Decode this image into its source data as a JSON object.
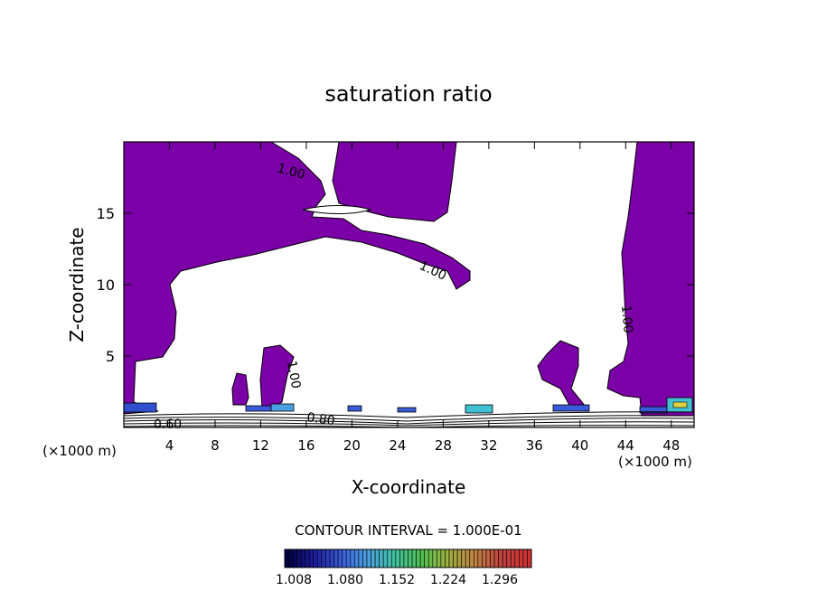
{
  "chart_data": {
    "type": "heatmap",
    "title": "saturation ratio",
    "xlabel": "X-coordinate",
    "ylabel": "Z-coordinate",
    "x_unit": "(×1000 m)",
    "z_unit": "(×1000 m)",
    "xlim": [
      0,
      50
    ],
    "ylim": [
      0,
      20
    ],
    "x_ticks": [
      4,
      8,
      12,
      16,
      20,
      24,
      28,
      32,
      36,
      40,
      44,
      48
    ],
    "y_ticks": [
      5,
      10,
      15
    ],
    "contour_interval_text": "CONTOUR INTERVAL = 1.000E-01",
    "contour_labels": [
      "1.00",
      "1.00",
      "1.00",
      "1.00",
      "0.80",
      "0.60"
    ],
    "colorbar": {
      "tick_labels": [
        "1.008",
        "1.080",
        "1.152",
        "1.224",
        "1.296"
      ],
      "colors": [
        "#000040",
        "#1a1a9a",
        "#3a5ad8",
        "#4aa0e0",
        "#40c0a0",
        "#50c050",
        "#a0b040",
        "#c08040",
        "#c04040",
        "#d03030"
      ]
    },
    "fill_color": "#7b00a8",
    "grid": false
  }
}
